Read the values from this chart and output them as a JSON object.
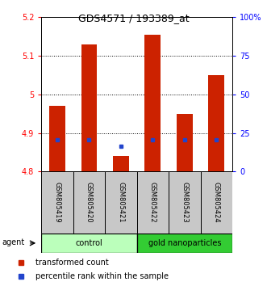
{
  "title": "GDS4571 / 193389_at",
  "categories": [
    "GSM805419",
    "GSM805420",
    "GSM805421",
    "GSM805422",
    "GSM805423",
    "GSM805424"
  ],
  "bar_tops": [
    4.97,
    5.13,
    4.84,
    5.155,
    4.95,
    5.05
  ],
  "bar_bottoms": [
    4.8,
    4.8,
    4.8,
    4.8,
    4.8,
    4.8
  ],
  "percentile_values": [
    4.882,
    4.882,
    4.865,
    4.882,
    4.882,
    4.882
  ],
  "bar_color": "#cc2200",
  "percentile_color": "#2244cc",
  "ylim_left": [
    4.8,
    5.2
  ],
  "ylim_right": [
    0,
    100
  ],
  "yticks_left": [
    4.8,
    4.9,
    5.0,
    5.1,
    5.2
  ],
  "ytick_labels_left": [
    "4.8",
    "4.9",
    "5",
    "5.1",
    "5.2"
  ],
  "yticks_right": [
    0,
    25,
    50,
    75,
    100
  ],
  "ytick_labels_right": [
    "0",
    "25",
    "50",
    "75",
    "100%"
  ],
  "dotted_lines": [
    4.9,
    5.0,
    5.1
  ],
  "group_info": [
    {
      "label": "control",
      "start": 0,
      "end": 3,
      "color": "#bbffbb"
    },
    {
      "label": "gold nanoparticles",
      "start": 3,
      "end": 6,
      "color": "#33cc33"
    }
  ],
  "agent_label": "agent",
  "legend_items": [
    "transformed count",
    "percentile rank within the sample"
  ],
  "legend_colors": [
    "#cc2200",
    "#2244cc"
  ],
  "bar_width": 0.5,
  "cat_box_color": "#c8c8c8",
  "title_fontsize": 9,
  "tick_fontsize": 7,
  "cat_fontsize": 6,
  "grp_fontsize": 7,
  "legend_fontsize": 7
}
